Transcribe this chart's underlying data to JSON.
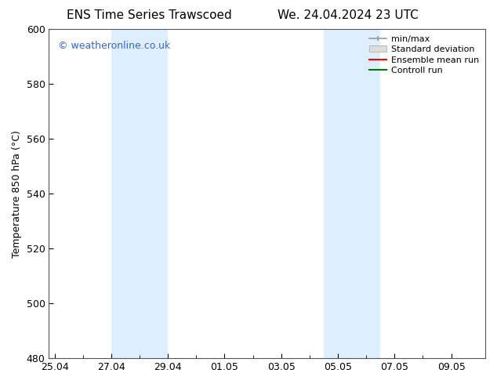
{
  "title_left": "ENS Time Series Trawscoed",
  "title_right": "We. 24.04.2024 23 UTC",
  "ylabel": "Temperature 850 hPa (°C)",
  "ylim": [
    480,
    600
  ],
  "yticks": [
    480,
    500,
    520,
    540,
    560,
    580,
    600
  ],
  "xtick_labels": [
    "25.04",
    "27.04",
    "29.04",
    "01.05",
    "03.05",
    "05.05",
    "07.05",
    "09.05"
  ],
  "xtick_positions": [
    0,
    2,
    4,
    6,
    8,
    10,
    12,
    14
  ],
  "x_minor_positions": [
    1,
    3,
    5,
    7,
    9,
    11,
    13
  ],
  "xlim": [
    -0.2,
    15.2
  ],
  "shaded_regions": [
    {
      "xmin": 2,
      "xmax": 4,
      "color": "#ddeeff"
    },
    {
      "xmin": 9.5,
      "xmax": 11.5,
      "color": "#ddeeff"
    }
  ],
  "watermark": "© weatheronline.co.uk",
  "watermark_color": "#3366cc",
  "legend_entries": [
    {
      "label": "min/max",
      "color": "#aaaaaa"
    },
    {
      "label": "Standard deviation",
      "color": "#cccccc"
    },
    {
      "label": "Ensemble mean run",
      "color": "#ff0000"
    },
    {
      "label": "Controll run",
      "color": "#007700"
    }
  ],
  "bg_color": "#ffffff",
  "title_fontsize": 11,
  "label_fontsize": 9,
  "tick_fontsize": 9,
  "legend_fontsize": 8
}
